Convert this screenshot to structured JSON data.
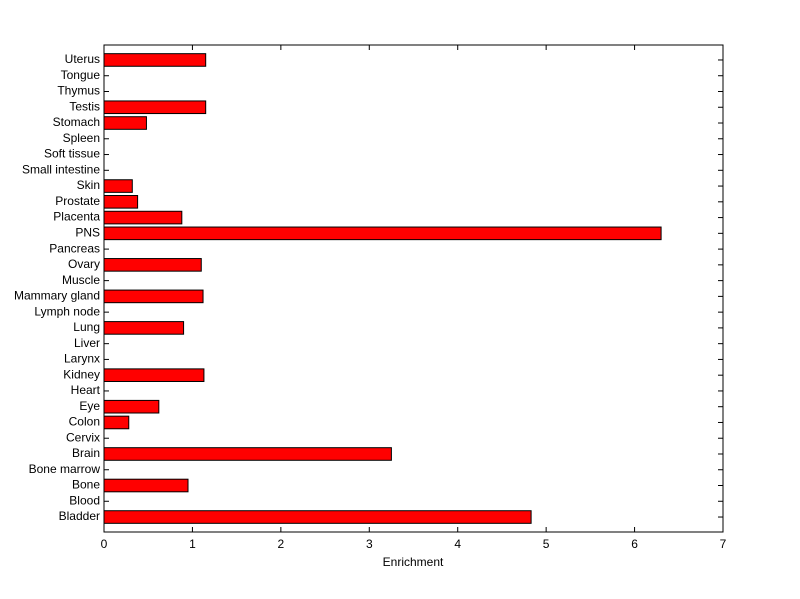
{
  "chart_data": {
    "type": "barh",
    "xlabel": "Enrichment",
    "categories": [
      "Bladder",
      "Blood",
      "Bone",
      "Bone marrow",
      "Brain",
      "Cervix",
      "Colon",
      "Eye",
      "Heart",
      "Kidney",
      "Larynx",
      "Liver",
      "Lung",
      "Lymph node",
      "Mammary gland",
      "Muscle",
      "Ovary",
      "Pancreas",
      "PNS",
      "Placenta",
      "Prostate",
      "Skin",
      "Small intestine",
      "Soft tissue",
      "Spleen",
      "Stomach",
      "Testis",
      "Thymus",
      "Tongue",
      "Uterus"
    ],
    "values": [
      4.83,
      0,
      0.95,
      0,
      3.25,
      0,
      0.28,
      0.62,
      0,
      1.13,
      0,
      0,
      0.9,
      0,
      1.12,
      0,
      1.1,
      0,
      6.3,
      0.88,
      0.38,
      0.32,
      0,
      0,
      0,
      0.48,
      1.15,
      0,
      0,
      1.15
    ],
    "color": "#ff0000",
    "xlim": [
      0,
      7
    ],
    "xticks": [
      0,
      1,
      2,
      3,
      4,
      5,
      6,
      7
    ]
  }
}
